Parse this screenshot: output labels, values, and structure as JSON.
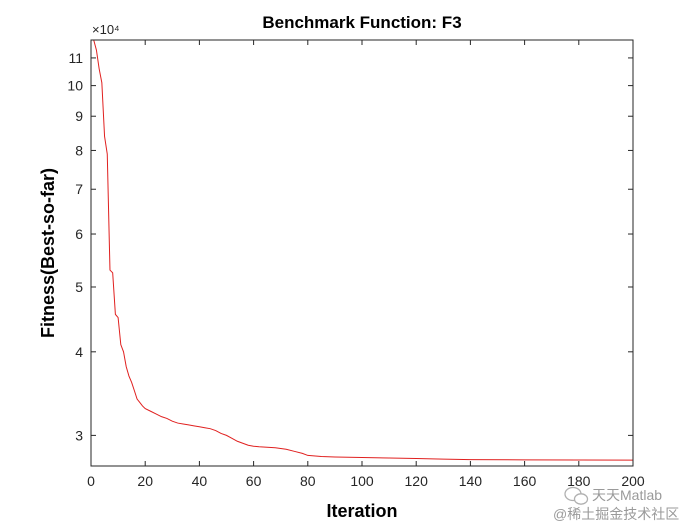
{
  "chart_data": {
    "type": "line",
    "title": "Benchmark Function: F3",
    "xlabel": "Iteration",
    "ylabel": "Fitness(Best-so-far)",
    "y_scale": "log",
    "y_exponent_label": "×10⁴",
    "y_multiplier": 10000,
    "xlim": [
      0,
      200
    ],
    "ylim": [
      27000,
      117000
    ],
    "x_ticks": [
      0,
      20,
      40,
      60,
      80,
      100,
      120,
      140,
      160,
      180,
      200
    ],
    "y_ticks": [
      3,
      4,
      5,
      6,
      7,
      8,
      9,
      10,
      11
    ],
    "grid": false,
    "series": [
      {
        "color": "#e0201f",
        "points": [
          [
            1,
            117000
          ],
          [
            2,
            113000
          ],
          [
            3,
            106000
          ],
          [
            4,
            101000
          ],
          [
            5,
            84000
          ],
          [
            6,
            79000
          ],
          [
            7,
            53000
          ],
          [
            8,
            52500
          ],
          [
            9,
            45500
          ],
          [
            10,
            45000
          ],
          [
            11,
            41000
          ],
          [
            12,
            40000
          ],
          [
            13,
            38000
          ],
          [
            14,
            36800
          ],
          [
            15,
            36000
          ],
          [
            16,
            35000
          ],
          [
            17,
            34000
          ],
          [
            18,
            33600
          ],
          [
            19,
            33200
          ],
          [
            20,
            32900
          ],
          [
            22,
            32600
          ],
          [
            24,
            32300
          ],
          [
            26,
            32000
          ],
          [
            28,
            31800
          ],
          [
            30,
            31500
          ],
          [
            32,
            31300
          ],
          [
            34,
            31200
          ],
          [
            36,
            31100
          ],
          [
            38,
            31000
          ],
          [
            40,
            30900
          ],
          [
            42,
            30800
          ],
          [
            44,
            30700
          ],
          [
            46,
            30500
          ],
          [
            48,
            30200
          ],
          [
            50,
            30000
          ],
          [
            52,
            29700
          ],
          [
            54,
            29400
          ],
          [
            56,
            29200
          ],
          [
            58,
            29000
          ],
          [
            60,
            28900
          ],
          [
            62,
            28850
          ],
          [
            65,
            28800
          ],
          [
            68,
            28750
          ],
          [
            72,
            28600
          ],
          [
            75,
            28400
          ],
          [
            78,
            28200
          ],
          [
            80,
            28000
          ],
          [
            85,
            27900
          ],
          [
            90,
            27850
          ],
          [
            100,
            27800
          ],
          [
            110,
            27750
          ],
          [
            120,
            27700
          ],
          [
            130,
            27650
          ],
          [
            140,
            27600
          ],
          [
            160,
            27580
          ],
          [
            180,
            27560
          ],
          [
            200,
            27550
          ]
        ]
      }
    ]
  },
  "watermark": {
    "line1": "天天Matlab",
    "line2": "@稀土掘金技术社区"
  }
}
